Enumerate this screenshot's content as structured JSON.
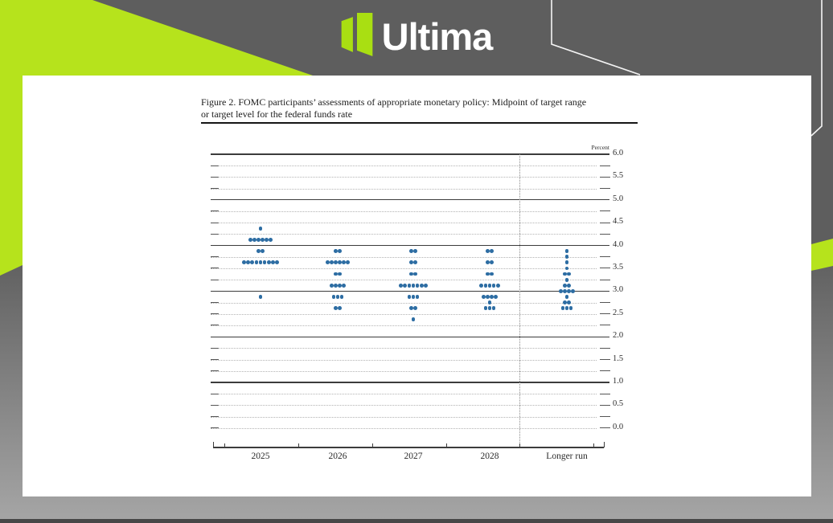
{
  "brand": {
    "name": "Ultima",
    "logo_green": "#a9df12",
    "accent_green": "#b6e31c"
  },
  "document": {
    "figure_title_line1": "Figure 2. FOMC participants’ assessments of appropriate monetary policy: Midpoint of target range",
    "figure_title_line2": "or target level for the federal funds rate"
  },
  "chart_data": {
    "type": "scatter",
    "title": "FOMC participants’ assessments of appropriate monetary policy: Midpoint of target range or target level for the federal funds rate",
    "ylabel": "Percent",
    "percent_label": "Percent",
    "ylim": [
      0.0,
      6.0
    ],
    "ytick_minor_step": 0.25,
    "ytick_label_step": 0.5,
    "ytick_labels": [
      "6.0",
      "5.5",
      "5.0",
      "4.5",
      "4.0",
      "3.5",
      "3.0",
      "2.5",
      "2.0",
      "1.5",
      "1.0",
      "0.5",
      "0.0"
    ],
    "solid_gridlines_at": [
      6.0,
      5.0,
      4.0,
      3.0,
      2.0,
      1.0
    ],
    "dotted_gridlines": "every 0.25 including 0.0",
    "separator": "dotted vertical line between 2028 and Longer run",
    "legend_position": "none",
    "dot_color": "#2d6da3",
    "categories": [
      "2025",
      "2026",
      "2027",
      "2028",
      "Longer run"
    ],
    "series": [
      {
        "category": "2025",
        "dots": [
          {
            "rate": 4.375,
            "count": 1
          },
          {
            "rate": 4.125,
            "count": 6
          },
          {
            "rate": 3.875,
            "count": 2
          },
          {
            "rate": 3.625,
            "count": 9
          },
          {
            "rate": 2.875,
            "count": 1
          }
        ]
      },
      {
        "category": "2026",
        "dots": [
          {
            "rate": 3.875,
            "count": 2
          },
          {
            "rate": 3.625,
            "count": 6
          },
          {
            "rate": 3.375,
            "count": 2
          },
          {
            "rate": 3.125,
            "count": 4
          },
          {
            "rate": 2.875,
            "count": 3
          },
          {
            "rate": 2.625,
            "count": 2
          }
        ]
      },
      {
        "category": "2027",
        "dots": [
          {
            "rate": 3.875,
            "count": 2
          },
          {
            "rate": 3.625,
            "count": 2
          },
          {
            "rate": 3.375,
            "count": 2
          },
          {
            "rate": 3.125,
            "count": 7
          },
          {
            "rate": 2.875,
            "count": 3
          },
          {
            "rate": 2.625,
            "count": 2
          },
          {
            "rate": 2.375,
            "count": 1
          }
        ]
      },
      {
        "category": "2028",
        "dots": [
          {
            "rate": 3.875,
            "count": 2
          },
          {
            "rate": 3.625,
            "count": 2
          },
          {
            "rate": 3.375,
            "count": 2
          },
          {
            "rate": 3.125,
            "count": 5
          },
          {
            "rate": 2.875,
            "count": 4
          },
          {
            "rate": 2.75,
            "count": 1
          },
          {
            "rate": 2.625,
            "count": 3
          }
        ]
      },
      {
        "category": "Longer run",
        "dots": [
          {
            "rate": 3.875,
            "count": 1
          },
          {
            "rate": 3.75,
            "count": 1
          },
          {
            "rate": 3.625,
            "count": 1
          },
          {
            "rate": 3.5,
            "count": 1
          },
          {
            "rate": 3.375,
            "count": 2
          },
          {
            "rate": 3.25,
            "count": 1
          },
          {
            "rate": 3.125,
            "count": 2
          },
          {
            "rate": 3.0,
            "count": 4
          },
          {
            "rate": 2.875,
            "count": 1
          },
          {
            "rate": 2.75,
            "count": 2
          },
          {
            "rate": 2.625,
            "count": 3
          }
        ]
      }
    ]
  }
}
